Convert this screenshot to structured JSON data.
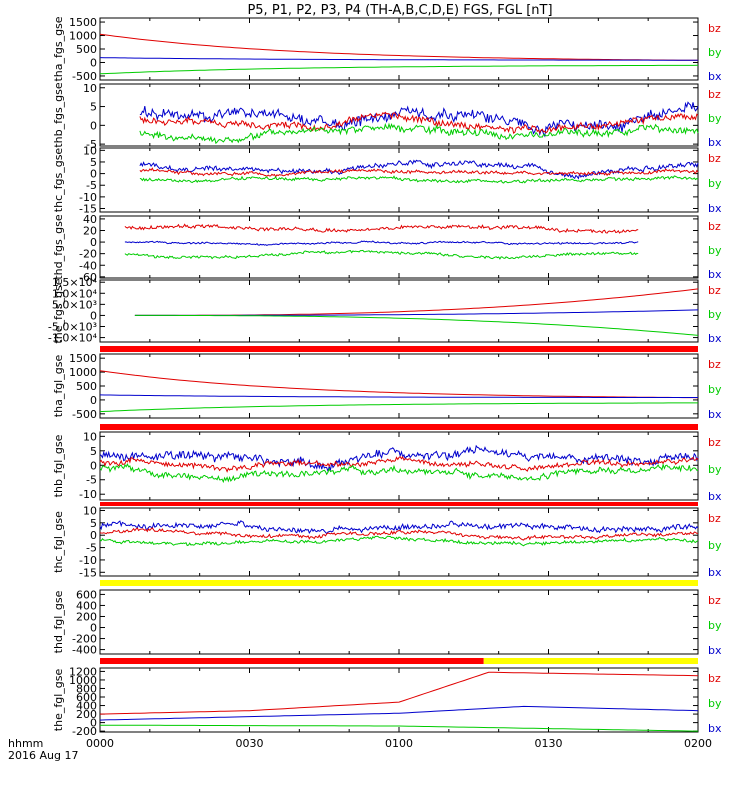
{
  "chart_data": {
    "type": "line",
    "title": "P5, P1, P2, P3, P4 (TH-A,B,C,D,E) FGS, FGL [nT]",
    "x_ticks": [
      "0000",
      "0030",
      "0100",
      "0130",
      "0200"
    ],
    "x_label_line1": "hhmm",
    "x_label_line2": "2016 Aug 17",
    "x_range": [
      0,
      120
    ],
    "legend_entries": [
      "bz",
      "by",
      "bx"
    ],
    "colors": {
      "bz": "#e00000",
      "by": "#00cc00",
      "bx": "#0000cc",
      "bar_red": "#ff0000",
      "bar_yellow": "#ffff00"
    },
    "panels": [
      {
        "ylabel": "tha_fgs_gse",
        "yticks": [
          "1500",
          "1000",
          "500",
          "0",
          "-500"
        ],
        "ytick_values": [
          1500,
          1000,
          500,
          0,
          -500
        ],
        "ylim": [
          -650,
          1650
        ],
        "series": [
          {
            "name": "bz",
            "kind": "decay",
            "from": 1050,
            "to": 30,
            "t0": 0,
            "t1": 120
          },
          {
            "name": "bx",
            "kind": "decay",
            "from": 180,
            "to": 80,
            "t0": 0,
            "t1": 120
          },
          {
            "name": "by",
            "kind": "decay",
            "from": -420,
            "to": -90,
            "t0": 0,
            "t1": 120
          }
        ]
      },
      {
        "ylabel": "thb_fgs_gse",
        "yticks": [
          "10",
          "5",
          "0",
          "-5"
        ],
        "ytick_values": [
          10,
          5,
          0,
          -5
        ],
        "ylim": [
          -5.5,
          11
        ],
        "series": [
          {
            "name": "bx",
            "kind": "noise",
            "mean": 2.5,
            "amp": 4,
            "t0": 8,
            "t1": 120
          },
          {
            "name": "bz",
            "kind": "noise",
            "mean": 0.5,
            "amp": 2.5,
            "t0": 8,
            "t1": 120
          },
          {
            "name": "by",
            "kind": "noise",
            "mean": -2,
            "amp": 2.5,
            "t0": 8,
            "t1": 120
          }
        ]
      },
      {
        "ylabel": "thc_fgs_gse",
        "yticks": [
          "10",
          "5",
          "0",
          "-5",
          "-10",
          "-15"
        ],
        "ytick_values": [
          10,
          5,
          0,
          -5,
          -10,
          -15
        ],
        "ylim": [
          -16.5,
          11
        ],
        "series": [
          {
            "name": "bx",
            "kind": "noise",
            "mean": 3,
            "amp": 3,
            "t0": 8,
            "t1": 120
          },
          {
            "name": "bz",
            "kind": "noise",
            "mean": 0.5,
            "amp": 1.8,
            "t0": 8,
            "t1": 120
          },
          {
            "name": "by",
            "kind": "noise",
            "mean": -2.5,
            "amp": 1.8,
            "t0": 8,
            "t1": 120
          }
        ]
      },
      {
        "ylabel": "thd_fgs_gse",
        "yticks": [
          "40",
          "20",
          "0",
          "-20",
          "-40",
          "-60"
        ],
        "ytick_values": [
          40,
          20,
          0,
          -20,
          -40,
          -60
        ],
        "ylim": [
          -62,
          45
        ],
        "series": [
          {
            "name": "bz",
            "kind": "noise",
            "mean": 24,
            "amp": 8,
            "t0": 5,
            "t1": 108
          },
          {
            "name": "bx",
            "kind": "noise",
            "mean": -2,
            "amp": 4,
            "t0": 5,
            "t1": 108
          },
          {
            "name": "by",
            "kind": "noise",
            "mean": -22,
            "amp": 6,
            "t0": 5,
            "t1": 108
          }
        ]
      },
      {
        "ylabel": "the_fgs_gse",
        "yticks": [
          "1.5×10⁴",
          "1.0×10⁴",
          "5.0×10³",
          "0",
          "-5.0×10³",
          "-1.0×10⁴"
        ],
        "ytick_values": [
          15000,
          10000,
          5000,
          0,
          -5000,
          -10000
        ],
        "ylim": [
          -12000,
          16000
        ],
        "series": [
          {
            "name": "bz",
            "kind": "growth",
            "from": 0,
            "to": 12000,
            "t0": 7,
            "t1": 120
          },
          {
            "name": "bx",
            "kind": "growth",
            "from": 0,
            "to": 2500,
            "t0": 7,
            "t1": 120
          },
          {
            "name": "by",
            "kind": "growth",
            "from": 0,
            "to": -9000,
            "t0": 7,
            "t1": 120
          }
        ]
      },
      {
        "ylabel": "tha_fgl_gse",
        "yticks": [
          "1500",
          "1000",
          "500",
          "0",
          "-500"
        ],
        "ytick_values": [
          1500,
          1000,
          500,
          0,
          -500
        ],
        "ylim": [
          -650,
          1650
        ],
        "series": [
          {
            "name": "bz",
            "kind": "decay",
            "from": 1050,
            "to": 30,
            "t0": 0,
            "t1": 120
          },
          {
            "name": "bx",
            "kind": "decay",
            "from": 180,
            "to": 80,
            "t0": 0,
            "t1": 120
          },
          {
            "name": "by",
            "kind": "decay",
            "from": -420,
            "to": -90,
            "t0": 0,
            "t1": 120
          }
        ]
      },
      {
        "ylabel": "thb_fgl_gse",
        "yticks": [
          "10",
          "5",
          "0",
          "-5",
          "-10"
        ],
        "ytick_values": [
          10,
          5,
          0,
          -5,
          -10
        ],
        "ylim": [
          -12,
          11.5
        ],
        "series": [
          {
            "name": "bx",
            "kind": "noise",
            "mean": 3,
            "amp": 4,
            "t0": 0,
            "t1": 120
          },
          {
            "name": "bz",
            "kind": "noise",
            "mean": 0.5,
            "amp": 2.5,
            "t0": 0,
            "t1": 120
          },
          {
            "name": "by",
            "kind": "noise",
            "mean": -2,
            "amp": 3,
            "t0": 0,
            "t1": 120
          }
        ]
      },
      {
        "ylabel": "thc_fgl_gse",
        "yticks": [
          "10",
          "5",
          "0",
          "-5",
          "-10",
          "-15"
        ],
        "ytick_values": [
          10,
          5,
          0,
          -5,
          -10,
          -15
        ],
        "ylim": [
          -16.5,
          11
        ],
        "series": [
          {
            "name": "bx",
            "kind": "noise",
            "mean": 3,
            "amp": 3,
            "t0": 0,
            "t1": 120
          },
          {
            "name": "bz",
            "kind": "noise",
            "mean": 0.5,
            "amp": 1.8,
            "t0": 0,
            "t1": 120
          },
          {
            "name": "by",
            "kind": "noise",
            "mean": -2.5,
            "amp": 1.8,
            "t0": 0,
            "t1": 120
          }
        ]
      },
      {
        "ylabel": "thd_fgl_gse",
        "yticks": [
          "600",
          "400",
          "200",
          "0",
          "-200",
          "-400"
        ],
        "ytick_values": [
          600,
          400,
          200,
          0,
          -200,
          -400
        ],
        "ylim": [
          -480,
          680
        ],
        "series": []
      },
      {
        "ylabel": "the_fgl_gse",
        "yticks": [
          "1200",
          "1000",
          "800",
          "600",
          "400",
          "200",
          "0",
          "-200"
        ],
        "ytick_values": [
          1200,
          1000,
          800,
          600,
          400,
          200,
          0,
          -200
        ],
        "ylim": [
          -220,
          1280
        ],
        "series": [
          {
            "name": "bz",
            "kind": "ramp",
            "points": [
              [
                0,
                200
              ],
              [
                30,
                280
              ],
              [
                60,
                480
              ],
              [
                78,
                1180
              ],
              [
                120,
                1100
              ]
            ]
          },
          {
            "name": "bx",
            "kind": "ramp",
            "points": [
              [
                0,
                60
              ],
              [
                60,
                220
              ],
              [
                85,
                380
              ],
              [
                120,
                280
              ]
            ]
          },
          {
            "name": "by",
            "kind": "ramp",
            "points": [
              [
                0,
                -60
              ],
              [
                60,
                -80
              ],
              [
                120,
                -200
              ]
            ]
          }
        ]
      }
    ]
  }
}
